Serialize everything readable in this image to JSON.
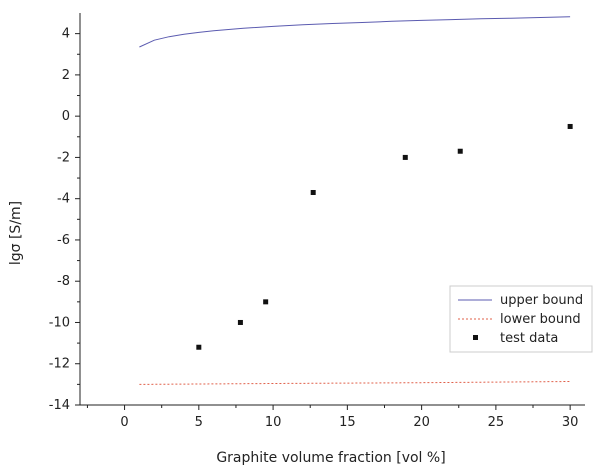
{
  "chart_data": {
    "type": "line",
    "xlabel": "Graphite volume fraction [vol %]",
    "ylabel": "lgσ [S/m]",
    "xlim": [
      -3,
      31
    ],
    "ylim": [
      -14,
      5
    ],
    "x_ticks": [
      0,
      5,
      10,
      15,
      20,
      25,
      30
    ],
    "x_tick_labels": [
      "0",
      "5",
      "10",
      "15",
      "20",
      "25",
      "30"
    ],
    "y_ticks": [
      4,
      2,
      0,
      -2,
      -4,
      -6,
      -8,
      -10,
      -12,
      -14
    ],
    "y_tick_labels": [
      "4",
      "2",
      "0",
      "-2",
      "-4",
      "-6",
      "-8",
      "-10",
      "-12",
      "-14"
    ],
    "grid": false,
    "legend_position": "bottom-right",
    "series": [
      {
        "name": "upper bound",
        "style": "line",
        "color": "#5b5bb0",
        "x": [
          1,
          2,
          3,
          4,
          5,
          6,
          8,
          10,
          12,
          14,
          16,
          18,
          20,
          22,
          24,
          26,
          28,
          30
        ],
        "values": [
          3.35,
          3.68,
          3.85,
          3.97,
          4.06,
          4.14,
          4.26,
          4.35,
          4.43,
          4.49,
          4.54,
          4.6,
          4.64,
          4.68,
          4.72,
          4.75,
          4.78,
          4.82
        ]
      },
      {
        "name": "lower bound",
        "style": "dotted",
        "color": "#e0604a",
        "x": [
          1,
          5,
          10,
          15,
          20,
          25,
          30
        ],
        "values": [
          -13.0,
          -12.98,
          -12.96,
          -12.94,
          -12.92,
          -12.89,
          -12.86
        ]
      },
      {
        "name": "test data",
        "style": "marker",
        "color": "#111111",
        "x": [
          5,
          7.8,
          9.5,
          12.7,
          18.9,
          22.6,
          30
        ],
        "values": [
          -11.2,
          -10.0,
          -9.0,
          -3.7,
          -2.0,
          -1.7,
          -0.5
        ]
      }
    ]
  }
}
